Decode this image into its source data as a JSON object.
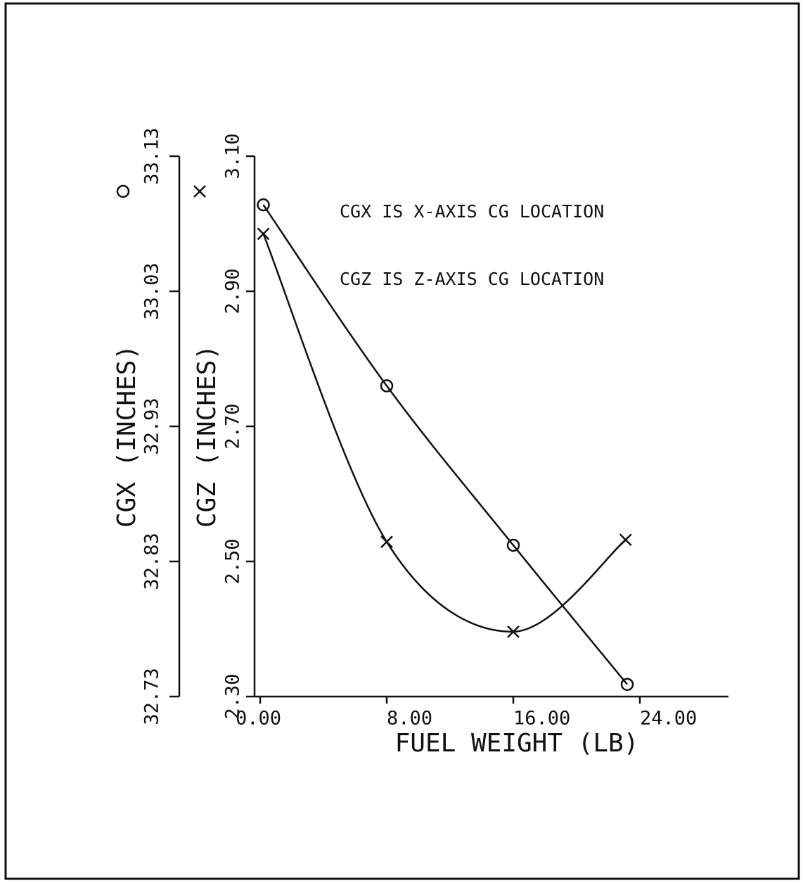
{
  "chart_data": {
    "type": "line",
    "xlabel": "FUEL WEIGHT (LB)",
    "ylabel": "CGX (INCHES)",
    "y2label": "CGZ (INCHES)",
    "annotations": [
      "CGX IS X-AXIS CG LOCATION",
      "CGZ IS Z-AXIS CG LOCATION"
    ],
    "xlim": [
      0,
      29.6
    ],
    "xticks": [
      {
        "value": 0,
        "label": "0.00"
      },
      {
        "value": 8,
        "label": "8.00"
      },
      {
        "value": 16,
        "label": "16.00"
      },
      {
        "value": 24,
        "label": "24.00"
      }
    ],
    "ylim": [
      32.73,
      33.13
    ],
    "yticks": [
      32.73,
      32.83,
      32.93,
      33.03,
      33.13
    ],
    "y2lim": [
      2.3,
      3.1
    ],
    "y2ticks": [
      {
        "value": 2.3,
        "label": "2.30"
      },
      {
        "value": 2.5,
        "label": "2.50"
      },
      {
        "value": 2.7,
        "label": "2.70"
      },
      {
        "value": 2.9,
        "label": "2.90"
      },
      {
        "value": 3.1,
        "label": "3.10"
      }
    ],
    "series": [
      {
        "marker": "circle",
        "color": "#111111",
        "x": [
          0.2,
          8,
          16,
          23.2
        ],
        "values": [
          33.094,
          32.96,
          32.842,
          32.739
        ]
      },
      {
        "marker": "x",
        "axis": "y2",
        "color": "#111111",
        "x": [
          0.2,
          8,
          16,
          23.1
        ],
        "values": [
          2.985,
          2.529,
          2.396,
          2.532
        ]
      }
    ]
  }
}
